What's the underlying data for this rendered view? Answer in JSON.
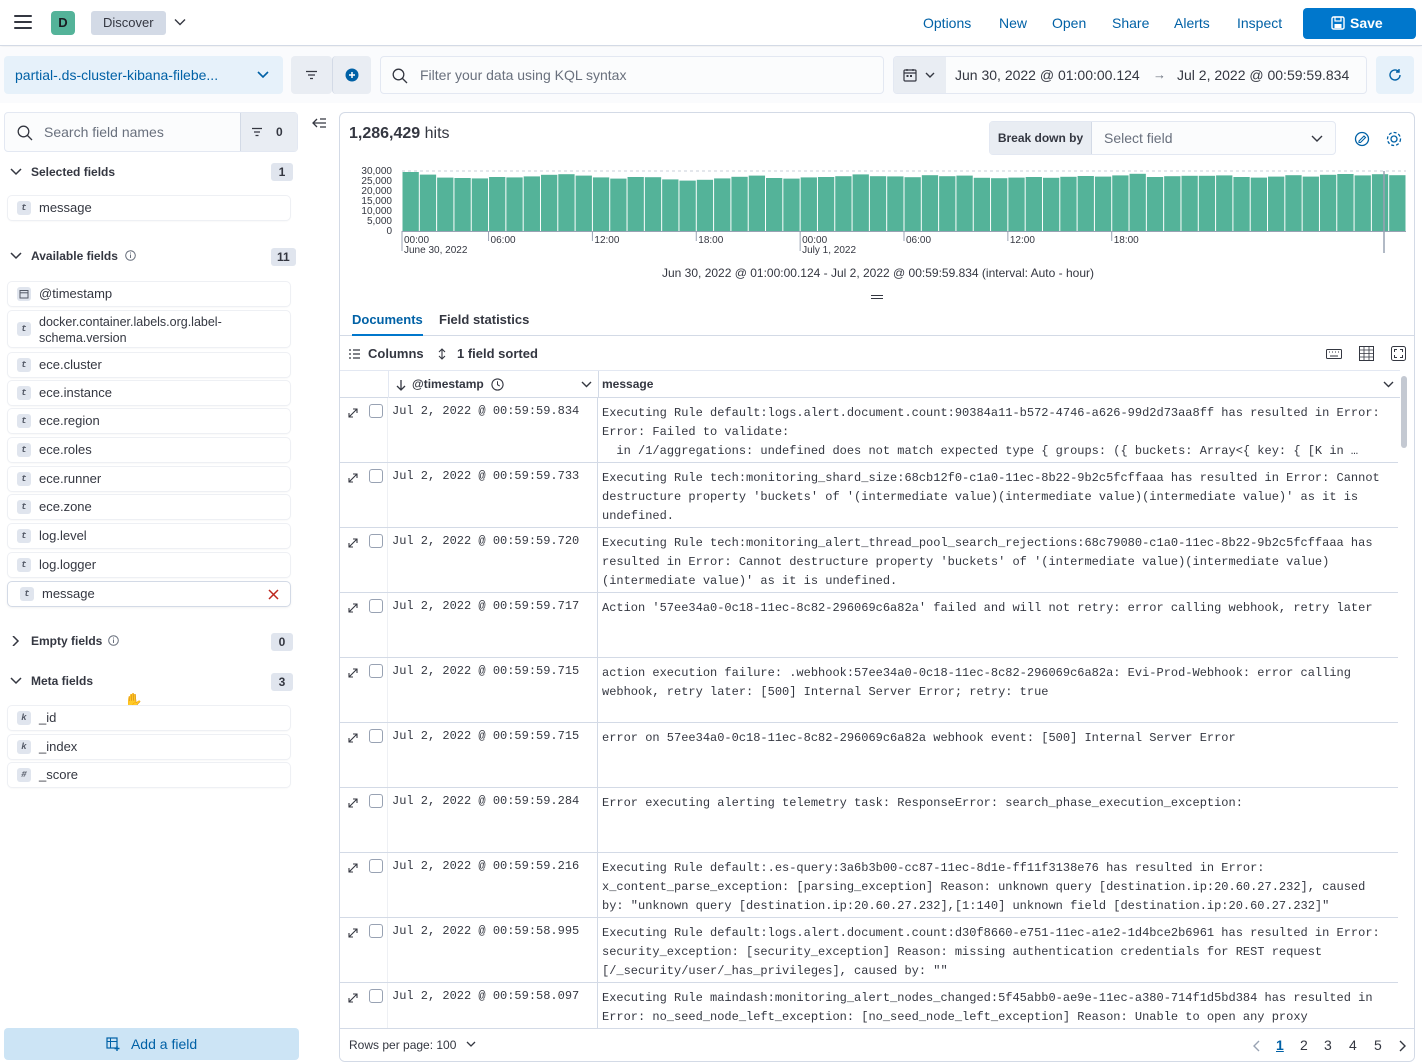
{
  "header": {
    "avatar": "D",
    "breadcrumb": "Discover",
    "nav": [
      "Options",
      "New",
      "Open",
      "Share",
      "Alerts",
      "Inspect"
    ],
    "save_label": "Save"
  },
  "query": {
    "index_pattern": "partial-.ds-cluster-kibana-filebe...",
    "kql_placeholder": "Filter your data using KQL syntax",
    "date_start": "Jun 30, 2022 @ 01:00:00.124",
    "date_arrow": "→",
    "date_end": "Jul 2, 2022 @ 00:59:59.834"
  },
  "sidebar": {
    "search_placeholder": "Search field names",
    "filter_count": "0",
    "selected": {
      "title": "Selected fields",
      "count": "1",
      "fields": [
        {
          "type": "t",
          "name": "message"
        }
      ]
    },
    "available": {
      "title": "Available fields",
      "count": "11",
      "fields": [
        {
          "type": "cal",
          "name": "@timestamp"
        },
        {
          "type": "t",
          "name": "docker.container.labels.org.label-schema.version"
        },
        {
          "type": "t",
          "name": "ece.cluster"
        },
        {
          "type": "t",
          "name": "ece.instance"
        },
        {
          "type": "t",
          "name": "ece.region"
        },
        {
          "type": "t",
          "name": "ece.roles"
        },
        {
          "type": "t",
          "name": "ece.runner"
        },
        {
          "type": "t",
          "name": "ece.zone"
        },
        {
          "type": "t",
          "name": "log.level"
        },
        {
          "type": "t",
          "name": "log.logger"
        },
        {
          "type": "t",
          "name": "message"
        }
      ]
    },
    "empty": {
      "title": "Empty fields",
      "count": "0"
    },
    "meta": {
      "title": "Meta fields",
      "count": "3",
      "fields": [
        {
          "type": "k",
          "name": "_id"
        },
        {
          "type": "k",
          "name": "_index"
        },
        {
          "type": "#",
          "name": "_score"
        }
      ]
    },
    "add_field": "Add a field"
  },
  "hits": {
    "count": "1,286,429",
    "label": "hits"
  },
  "breakdown": {
    "label": "Break down by",
    "placeholder": "Select field"
  },
  "chart_data": {
    "type": "bar",
    "title": "",
    "yticks": [
      "30,000",
      "25,000",
      "20,000",
      "15,000",
      "10,000",
      "5,000",
      "0"
    ],
    "ylim": [
      0,
      30000
    ],
    "xticks": [
      {
        "label": "00:00",
        "sub": "June 30, 2022",
        "i": 0
      },
      {
        "label": "06:00",
        "sub": "",
        "i": 5
      },
      {
        "label": "12:00",
        "sub": "",
        "i": 11
      },
      {
        "label": "18:00",
        "sub": "",
        "i": 17
      },
      {
        "label": "00:00",
        "sub": "July 1, 2022",
        "i": 23
      },
      {
        "label": "06:00",
        "sub": "",
        "i": 29
      },
      {
        "label": "12:00",
        "sub": "",
        "i": 35
      },
      {
        "label": "18:00",
        "sub": "",
        "i": 41
      }
    ],
    "values": [
      29500,
      28200,
      26700,
      26500,
      26300,
      27000,
      26800,
      27300,
      28100,
      28400,
      27700,
      26800,
      26200,
      27000,
      26900,
      25800,
      25200,
      25600,
      26300,
      27100,
      27700,
      26500,
      26200,
      26800,
      27000,
      27400,
      28300,
      27400,
      27300,
      26900,
      27900,
      27400,
      27700,
      26600,
      26400,
      26700,
      27000,
      26600,
      27100,
      27500,
      27200,
      27800,
      28600,
      27000,
      27400,
      27600,
      27600,
      27800,
      27000,
      26700,
      27200,
      27900,
      27200,
      28100,
      28500,
      27800,
      28400,
      27900
    ],
    "color": "#54b399"
  },
  "interval_text": "Jun 30, 2022 @ 01:00:00.124 - Jul 2, 2022 @ 00:59:59.834 (interval: Auto - hour)",
  "tabs": [
    "Documents",
    "Field statistics"
  ],
  "gridtools": {
    "columns": "Columns",
    "sorted": "1 field sorted"
  },
  "columns": {
    "timestamp": "@timestamp",
    "message": "message"
  },
  "rows": [
    {
      "ts": "Jul 2, 2022 @ 00:59:59.834",
      "msg": "Executing Rule default:logs.alert.document.count:90384a11-b572-4746-a626-99d2d73aa8ff has resulted in Error: Error: Failed to validate:\n  in /1/aggregations: undefined does not match expected type { groups: ({ buckets: Array<{ key: { [K in …"
    },
    {
      "ts": "Jul 2, 2022 @ 00:59:59.733",
      "msg": "Executing Rule tech:monitoring_shard_size:68cb12f0-c1a0-11ec-8b22-9b2c5fcffaaa has resulted in Error: Cannot destructure property 'buckets' of '(intermediate value)(intermediate value)(intermediate value)' as it is undefined."
    },
    {
      "ts": "Jul 2, 2022 @ 00:59:59.720",
      "msg": "Executing Rule tech:monitoring_alert_thread_pool_search_rejections:68c79080-c1a0-11ec-8b22-9b2c5fcffaaa has resulted in Error: Cannot destructure property 'buckets' of '(intermediate value)(intermediate value)(intermediate value)' as it is undefined."
    },
    {
      "ts": "Jul 2, 2022 @ 00:59:59.717",
      "msg": "Action '57ee34a0-0c18-11ec-8c82-296069c6a82a' failed and will not retry: error calling webhook, retry later"
    },
    {
      "ts": "Jul 2, 2022 @ 00:59:59.715",
      "msg": "action execution failure: .webhook:57ee34a0-0c18-11ec-8c82-296069c6a82a: Evi-Prod-Webhook: error calling webhook, retry later: [500] Internal Server Error; retry: true"
    },
    {
      "ts": "Jul 2, 2022 @ 00:59:59.715",
      "msg": "error on 57ee34a0-0c18-11ec-8c82-296069c6a82a webhook event: [500] Internal Server Error"
    },
    {
      "ts": "Jul 2, 2022 @ 00:59:59.284",
      "msg": "Error executing alerting telemetry task: ResponseError: search_phase_execution_exception:"
    },
    {
      "ts": "Jul 2, 2022 @ 00:59:59.216",
      "msg": "Executing Rule default:.es-query:3a6b3b00-cc87-11ec-8d1e-ff11f3138e76 has resulted in Error: x_content_parse_exception: [parsing_exception] Reason: unknown query [destination.ip:20.60.27.232], caused by: \"unknown query [destination.ip:20.60.27.232],[1:140] unknown field [destination.ip:20.60.27.232]\""
    },
    {
      "ts": "Jul 2, 2022 @ 00:59:58.995",
      "msg": "Executing Rule default:logs.alert.document.count:d30f8660-e751-11ec-a1e2-1d4bce2b6961 has resulted in Error: security_exception: [security_exception] Reason: missing authentication credentials for REST request [/_security/user/_has_privileges], caused by: \"\""
    },
    {
      "ts": "Jul 2, 2022 @ 00:59:58.097",
      "msg": "Executing Rule maindash:monitoring_alert_nodes_changed:5f45abb0-ae9e-11ec-a380-714f1d5bd384 has resulted in Error: no_seed_node_left_exception: [no_seed_node_left_exception] Reason: Unable to open any proxy"
    }
  ],
  "footer": {
    "rows_per_page": "Rows per page: 100",
    "pages": [
      "1",
      "2",
      "3",
      "4",
      "5"
    ],
    "current_page": "1"
  }
}
